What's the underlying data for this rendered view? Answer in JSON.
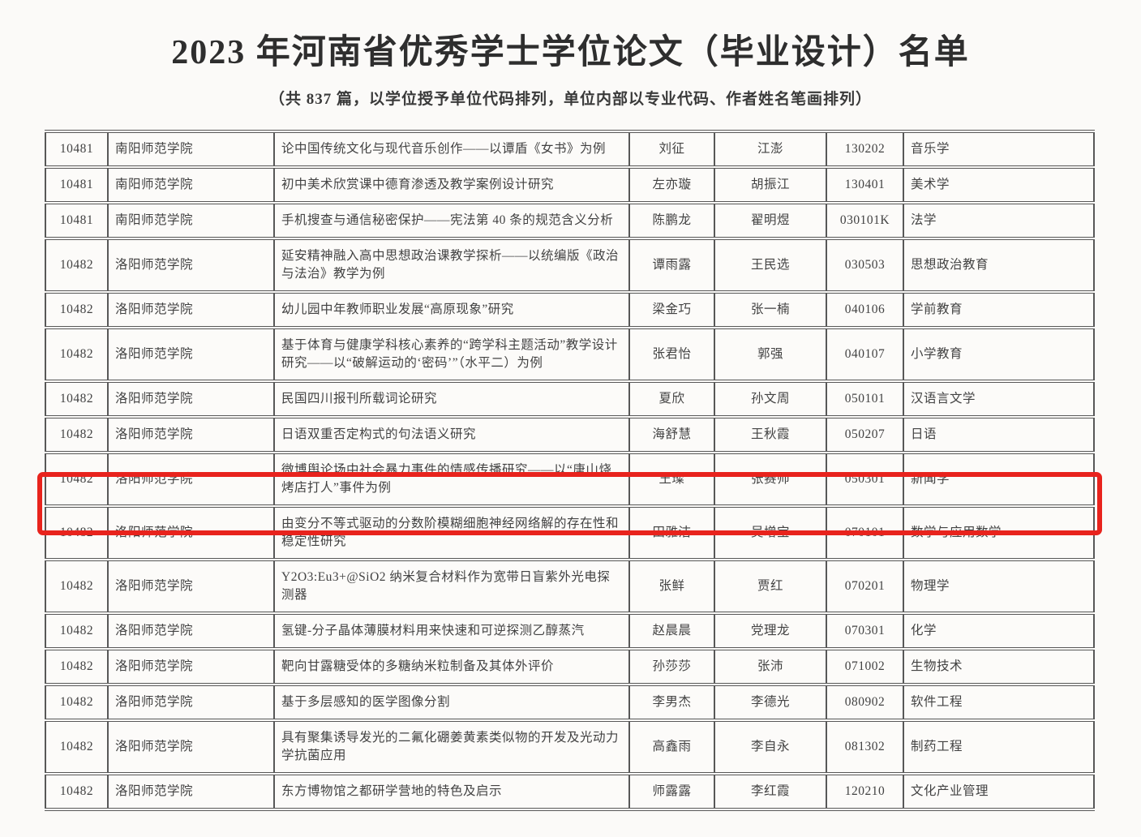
{
  "page": {
    "title": "2023 年河南省优秀学士学位论文（毕业设计）名单",
    "subtitle": "（共 837 篇，以学位授予单位代码排列，单位内部以专业代码、作者姓名笔画排列）"
  },
  "colors": {
    "highlight_red": "#e8231d",
    "table_border": "#585858",
    "text": "#424242",
    "page_background": "#fbfaf8"
  },
  "table": {
    "rows": [
      {
        "unit_code": "10481",
        "unit": "南阳师范学院",
        "thesis": "论中国传统文化与现代音乐创作——以谭盾《女书》为例",
        "author": "刘征",
        "advisor": "江澎",
        "major_code": "130202",
        "major": "音乐学",
        "highlighted": false
      },
      {
        "unit_code": "10481",
        "unit": "南阳师范学院",
        "thesis": "初中美术欣赏课中德育渗透及教学案例设计研究",
        "author": "左亦璇",
        "advisor": "胡振江",
        "major_code": "130401",
        "major": "美术学",
        "highlighted": false
      },
      {
        "unit_code": "10481",
        "unit": "南阳师范学院",
        "thesis": "手机搜查与通信秘密保护——宪法第 40 条的规范含义分析",
        "author": "陈鹏龙",
        "advisor": "翟明煜",
        "major_code": "030101K",
        "major": "法学",
        "highlighted": false
      },
      {
        "unit_code": "10482",
        "unit": "洛阳师范学院",
        "thesis": "延安精神融入高中思想政治课教学探析——以统编版《政治与法治》教学为例",
        "author": "谭雨露",
        "advisor": "王民选",
        "major_code": "030503",
        "major": "思想政治教育",
        "highlighted": false
      },
      {
        "unit_code": "10482",
        "unit": "洛阳师范学院",
        "thesis": "幼儿园中年教师职业发展“高原现象”研究",
        "author": "梁金巧",
        "advisor": "张一楠",
        "major_code": "040106",
        "major": "学前教育",
        "highlighted": false
      },
      {
        "unit_code": "10482",
        "unit": "洛阳师范学院",
        "thesis": "基于体育与健康学科核心素养的“跨学科主题活动”教学设计研究——以“破解运动的‘密码’”（水平二）为例",
        "author": "张君怡",
        "advisor": "郭强",
        "major_code": "040107",
        "major": "小学教育",
        "highlighted": false
      },
      {
        "unit_code": "10482",
        "unit": "洛阳师范学院",
        "thesis": "民国四川报刊所载词论研究",
        "author": "夏欣",
        "advisor": "孙文周",
        "major_code": "050101",
        "major": "汉语言文学",
        "highlighted": false
      },
      {
        "unit_code": "10482",
        "unit": "洛阳师范学院",
        "thesis": "日语双重否定构式的句法语义研究",
        "author": "海舒慧",
        "advisor": "王秋霞",
        "major_code": "050207",
        "major": "日语",
        "highlighted": false
      },
      {
        "unit_code": "10482",
        "unit": "洛阳师范学院",
        "thesis": "微博舆论场中社会暴力事件的情感传播研究——以“唐山烧烤店打人”事件为例",
        "author": "王璨",
        "advisor": "张赛帅",
        "major_code": "050301",
        "major": "新闻学",
        "highlighted": true
      },
      {
        "unit_code": "10482",
        "unit": "洛阳师范学院",
        "thesis": "由变分不等式驱动的分数阶模糊细胞神经网络解的存在性和稳定性研究",
        "author": "田雅洁",
        "advisor": "吴增宝",
        "major_code": "070101",
        "major": "数学与应用数学",
        "highlighted": false
      },
      {
        "unit_code": "10482",
        "unit": "洛阳师范学院",
        "thesis": "Y2O3:Eu3+@SiO2 纳米复合材料作为宽带日盲紫外光电探测器",
        "author": "张鲜",
        "advisor": "贾红",
        "major_code": "070201",
        "major": "物理学",
        "highlighted": false
      },
      {
        "unit_code": "10482",
        "unit": "洛阳师范学院",
        "thesis": "氢键-分子晶体薄膜材料用来快速和可逆探测乙醇蒸汽",
        "author": "赵晨晨",
        "advisor": "党理龙",
        "major_code": "070301",
        "major": "化学",
        "highlighted": false
      },
      {
        "unit_code": "10482",
        "unit": "洛阳师范学院",
        "thesis": "靶向甘露糖受体的多糖纳米粒制备及其体外评价",
        "author": "孙莎莎",
        "advisor": "张沛",
        "major_code": "071002",
        "major": "生物技术",
        "highlighted": false
      },
      {
        "unit_code": "10482",
        "unit": "洛阳师范学院",
        "thesis": "基于多层感知的医学图像分割",
        "author": "李男杰",
        "advisor": "李德光",
        "major_code": "080902",
        "major": "软件工程",
        "highlighted": false
      },
      {
        "unit_code": "10482",
        "unit": "洛阳师范学院",
        "thesis": "具有聚集诱导发光的二氟化硼姜黄素类似物的开发及光动力学抗菌应用",
        "author": "高鑫雨",
        "advisor": "李自永",
        "major_code": "081302",
        "major": "制药工程",
        "highlighted": false
      },
      {
        "unit_code": "10482",
        "unit": "洛阳师范学院",
        "thesis": "东方博物馆之都研学营地的特色及启示",
        "author": "师露露",
        "advisor": "李红霞",
        "major_code": "120210",
        "major": "文化产业管理",
        "highlighted": false
      }
    ]
  }
}
